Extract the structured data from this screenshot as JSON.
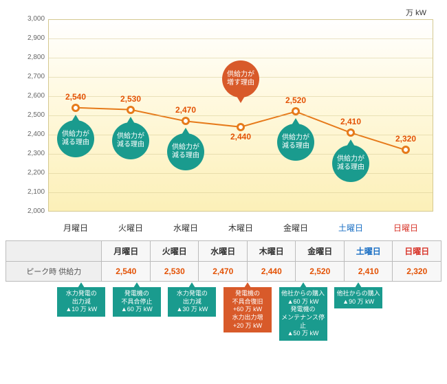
{
  "chart": {
    "unit": "万 kW",
    "type": "line",
    "ylim": [
      2000,
      3000
    ],
    "ytick_step": 100,
    "yticks": [
      2000,
      2100,
      2200,
      2300,
      2400,
      2500,
      2600,
      2700,
      2800,
      2900,
      3000
    ],
    "days": [
      {
        "label": "月曜日",
        "cls": "weekday",
        "value": 2540
      },
      {
        "label": "火曜日",
        "cls": "weekday",
        "value": 2530
      },
      {
        "label": "水曜日",
        "cls": "weekday",
        "value": 2470
      },
      {
        "label": "木曜日",
        "cls": "weekday",
        "value": 2440
      },
      {
        "label": "金曜日",
        "cls": "weekday",
        "value": 2520
      },
      {
        "label": "土曜日",
        "cls": "sat",
        "value": 2410
      },
      {
        "label": "日曜日",
        "cls": "sun",
        "value": 2320
      }
    ],
    "line_color": "#e67a1a",
    "line_width": 2,
    "marker_size": 12,
    "marker_fill": "#ffffff",
    "background_gradient": [
      "#ffffff",
      "#fff9e0",
      "#fcf0b8"
    ],
    "grid_color": "#d4c890",
    "value_color": "#e35205",
    "value_fontsize": 12,
    "bubbles": [
      {
        "text": "供給力が\n減る理由",
        "type": "teal",
        "day": 0,
        "dy": 45
      },
      {
        "text": "供給力が\n減る理由",
        "type": "teal",
        "day": 1,
        "dy": 45
      },
      {
        "text": "供給力が\n減る理由",
        "type": "teal",
        "day": 2,
        "dy": 45
      },
      {
        "text": "供給力が\n増す理由",
        "type": "org",
        "day": 3,
        "dy": -70
      },
      {
        "text": "供給力が\n減る理由",
        "type": "teal",
        "day": 4,
        "dy": 45
      },
      {
        "text": "供給力が\n減る理由",
        "type": "teal",
        "day": 5,
        "dy": 45
      }
    ]
  },
  "table": {
    "row_label": "ピーク時\n供給力",
    "boxes": [
      {
        "day": 0,
        "type": "teal",
        "lines": [
          "水力発電の",
          "出力減",
          "▲10 万 kW"
        ]
      },
      {
        "day": 1,
        "type": "teal",
        "lines": [
          "発電機の",
          "不具合停止",
          "▲60 万 kW"
        ]
      },
      {
        "day": 2,
        "type": "teal",
        "lines": [
          "水力発電の",
          "出力減",
          "▲30 万 kW"
        ]
      },
      {
        "day": 3,
        "type": "org",
        "lines": [
          "発電機の",
          "不具合復旧",
          "+60 万 kW",
          "水力出力増",
          "+20 万 kW"
        ]
      },
      {
        "day": 4,
        "type": "teal",
        "lines": [
          "他社からの購入",
          "▲60 万 kW",
          "発電機の",
          "メンテナンス停止",
          "▲50 万 kW"
        ]
      },
      {
        "day": 5,
        "type": "teal",
        "lines": [
          "他社からの購入",
          "▲90 万 kW"
        ]
      }
    ]
  },
  "colors": {
    "teal": "#1a9b8e",
    "org": "#d85a2a"
  }
}
